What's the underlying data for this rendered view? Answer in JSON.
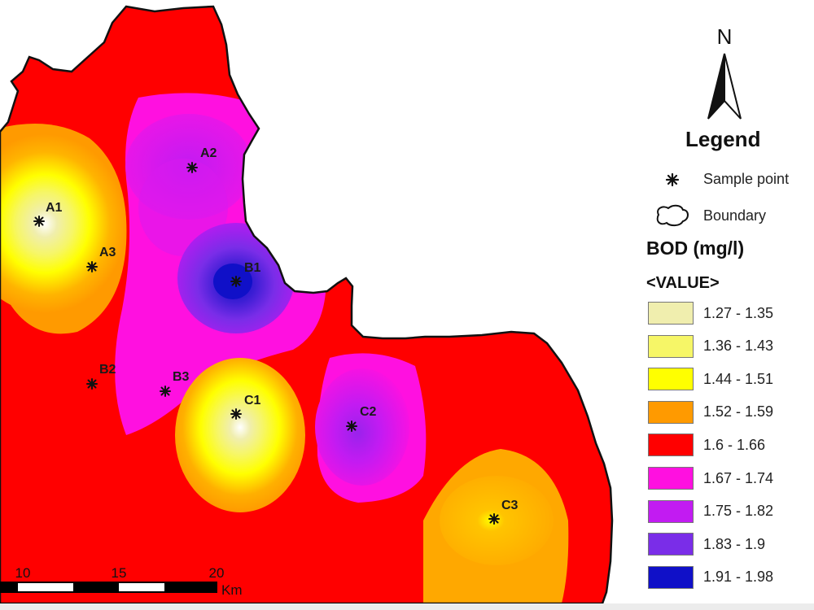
{
  "map": {
    "sample_points": [
      {
        "id": "A1",
        "label": "A1"
      },
      {
        "id": "A2",
        "label": "A2"
      },
      {
        "id": "A3",
        "label": "A3"
      },
      {
        "id": "B1",
        "label": "B1"
      },
      {
        "id": "B2",
        "label": "B2"
      },
      {
        "id": "B3",
        "label": "B3"
      },
      {
        "id": "C1",
        "label": "C1"
      },
      {
        "id": "C2",
        "label": "C2"
      },
      {
        "id": "C3",
        "label": "C3"
      }
    ],
    "scale_bar": {
      "ticks": [
        "10",
        "15",
        "20"
      ],
      "unit": "Km"
    }
  },
  "north_arrow": {
    "letter": "N"
  },
  "legend": {
    "title": "Legend",
    "sample_point_label": "Sample point",
    "boundary_label": "Boundary",
    "variable_title": "BOD (mg/l)",
    "value_title": "<VALUE>",
    "classes": [
      {
        "label": "1.27 - 1.35",
        "color": "#f0eeae"
      },
      {
        "label": "1.36 - 1.43",
        "color": "#f6f667"
      },
      {
        "label": "1.44 - 1.51",
        "color": "#ffff00"
      },
      {
        "label": "1.52 - 1.59",
        "color": "#ff9a00"
      },
      {
        "label": "1.6 - 1.66",
        "color": "#ff0000"
      },
      {
        "label": "1.67 - 1.74",
        "color": "#ff10e0"
      },
      {
        "label": "1.75 - 1.82",
        "color": "#c21bf2"
      },
      {
        "label": "1.83 - 1.9",
        "color": "#7a2de8"
      },
      {
        "label": "1.91 - 1.98",
        "color": "#1010c8"
      }
    ]
  }
}
